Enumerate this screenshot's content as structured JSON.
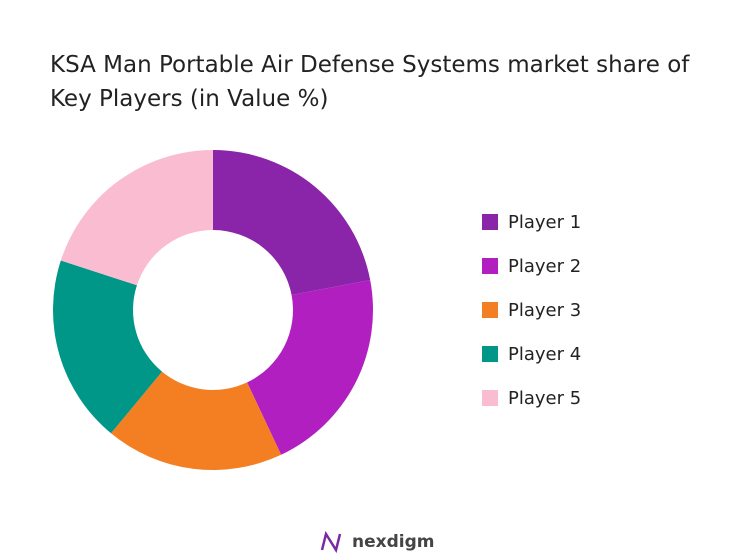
{
  "chart_data": {
    "type": "donut",
    "title": "KSA Man Portable Air Defense Systems market share of Key Players (in Value %)",
    "categories": [
      "Player 1",
      "Player 2",
      "Player 3",
      "Player 4",
      "Player 5"
    ],
    "values": [
      22,
      21,
      18,
      19,
      20
    ],
    "colors": [
      "#8a24a8",
      "#b11fc0",
      "#f47e22",
      "#009688",
      "#f9bcd0"
    ],
    "legend": "right"
  },
  "footer": "nexdigm"
}
